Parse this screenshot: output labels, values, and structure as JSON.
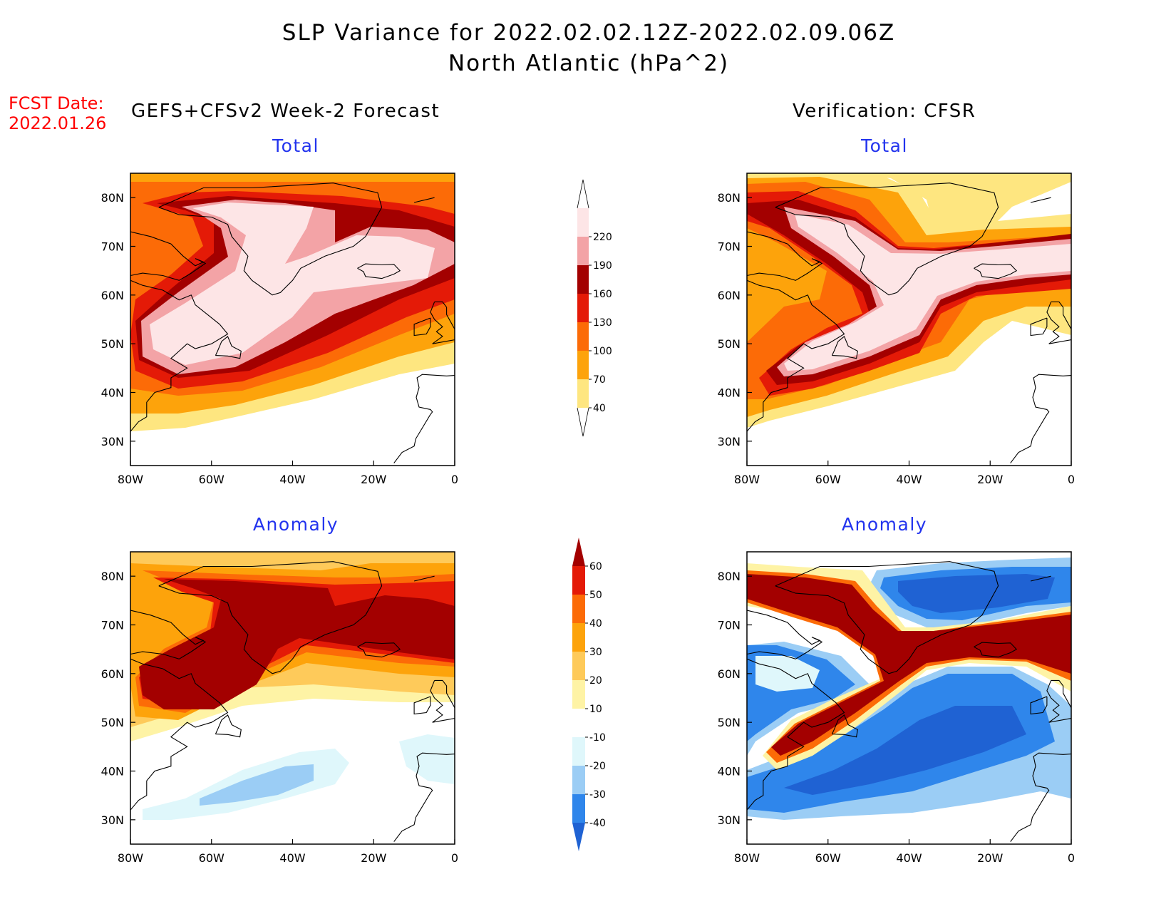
{
  "title": {
    "line1": "SLP Variance for 2022.02.02.12Z-2022.02.09.06Z",
    "line2": "North Atlantic (hPa^2)"
  },
  "fcst_date": {
    "label": "FCST Date:",
    "value": "2022.01.26"
  },
  "columns": {
    "forecast_label": "GEFS+CFSv2 Week-2 Forecast",
    "verification_label": "Verification: CFSR"
  },
  "panels": [
    {
      "title": "Total"
    },
    {
      "title": "Total"
    },
    {
      "title": "Anomaly"
    },
    {
      "title": "Anomaly"
    }
  ],
  "axes": {
    "lat_ticks": [
      "80N",
      "70N",
      "60N",
      "50N",
      "40N",
      "30N"
    ],
    "lon_ticks": [
      "80W",
      "60W",
      "40W",
      "20W",
      "0"
    ],
    "lat_range": [
      25,
      85
    ],
    "lon_range": [
      -80,
      0
    ]
  },
  "colorbars": {
    "total": {
      "levels": [
        "40",
        "70",
        "100",
        "130",
        "160",
        "190",
        "220"
      ],
      "colors": [
        "#fee680",
        "#fda30b",
        "#fc6b07",
        "#e41a07",
        "#a30000",
        "#f3a3a6",
        "#fde5e6"
      ]
    },
    "anomaly": {
      "levels": [
        "-40",
        "-30",
        "-20",
        "-10",
        "10",
        "20",
        "30",
        "40",
        "50",
        "60"
      ],
      "colors": [
        "#1f62d3",
        "#2f86eb",
        "#9bcdf5",
        "#dff7fb",
        "#ffffff",
        "#fef3a5",
        "#feca5a",
        "#fda30b",
        "#fc6b07",
        "#e41a07",
        "#a30000"
      ]
    }
  },
  "chart_data": [
    {
      "type": "heatmap",
      "panel": "GEFS+CFSv2 Week-2 Forecast - Total",
      "units": "hPa^2",
      "levels": [
        40,
        70,
        100,
        130,
        160,
        190,
        220
      ],
      "features": [
        "Maximum (>220) band from Labrador Sea across Greenland/Iceland region and Newfoundland",
        "Values decrease below 40 south of 35N"
      ]
    },
    {
      "type": "heatmap",
      "panel": "Verification: CFSR - Total",
      "units": "hPa^2",
      "levels": [
        40,
        70,
        100,
        130,
        160,
        190,
        220
      ],
      "features": [
        "Maximum (>220) band from Newfoundland northeast to Iceland and Norway",
        "Values below 40 over eastern subtropical Atlantic"
      ]
    },
    {
      "type": "heatmap",
      "panel": "GEFS+CFSv2 Week-2 Forecast - Anomaly",
      "units": "hPa^2",
      "levels": [
        -40,
        -30,
        -20,
        -10,
        10,
        20,
        30,
        40,
        50,
        60
      ],
      "features": [
        "Positive anomaly >60 over Labrador, Greenland and North Atlantic north of 45N",
        "Weak negative anomaly (-20 to -10) near 35-40N, 60-30W"
      ]
    },
    {
      "type": "heatmap",
      "panel": "Verification: CFSR - Anomaly",
      "units": "hPa^2",
      "levels": [
        -40,
        -30,
        -20,
        -10,
        10,
        20,
        30,
        40,
        50,
        60
      ],
      "features": [
        "Positive anomaly >60 band from Newfoundland to Iceland/Norway and Baffin Bay",
        "Negative anomaly <-40 south and north of the band"
      ]
    }
  ]
}
